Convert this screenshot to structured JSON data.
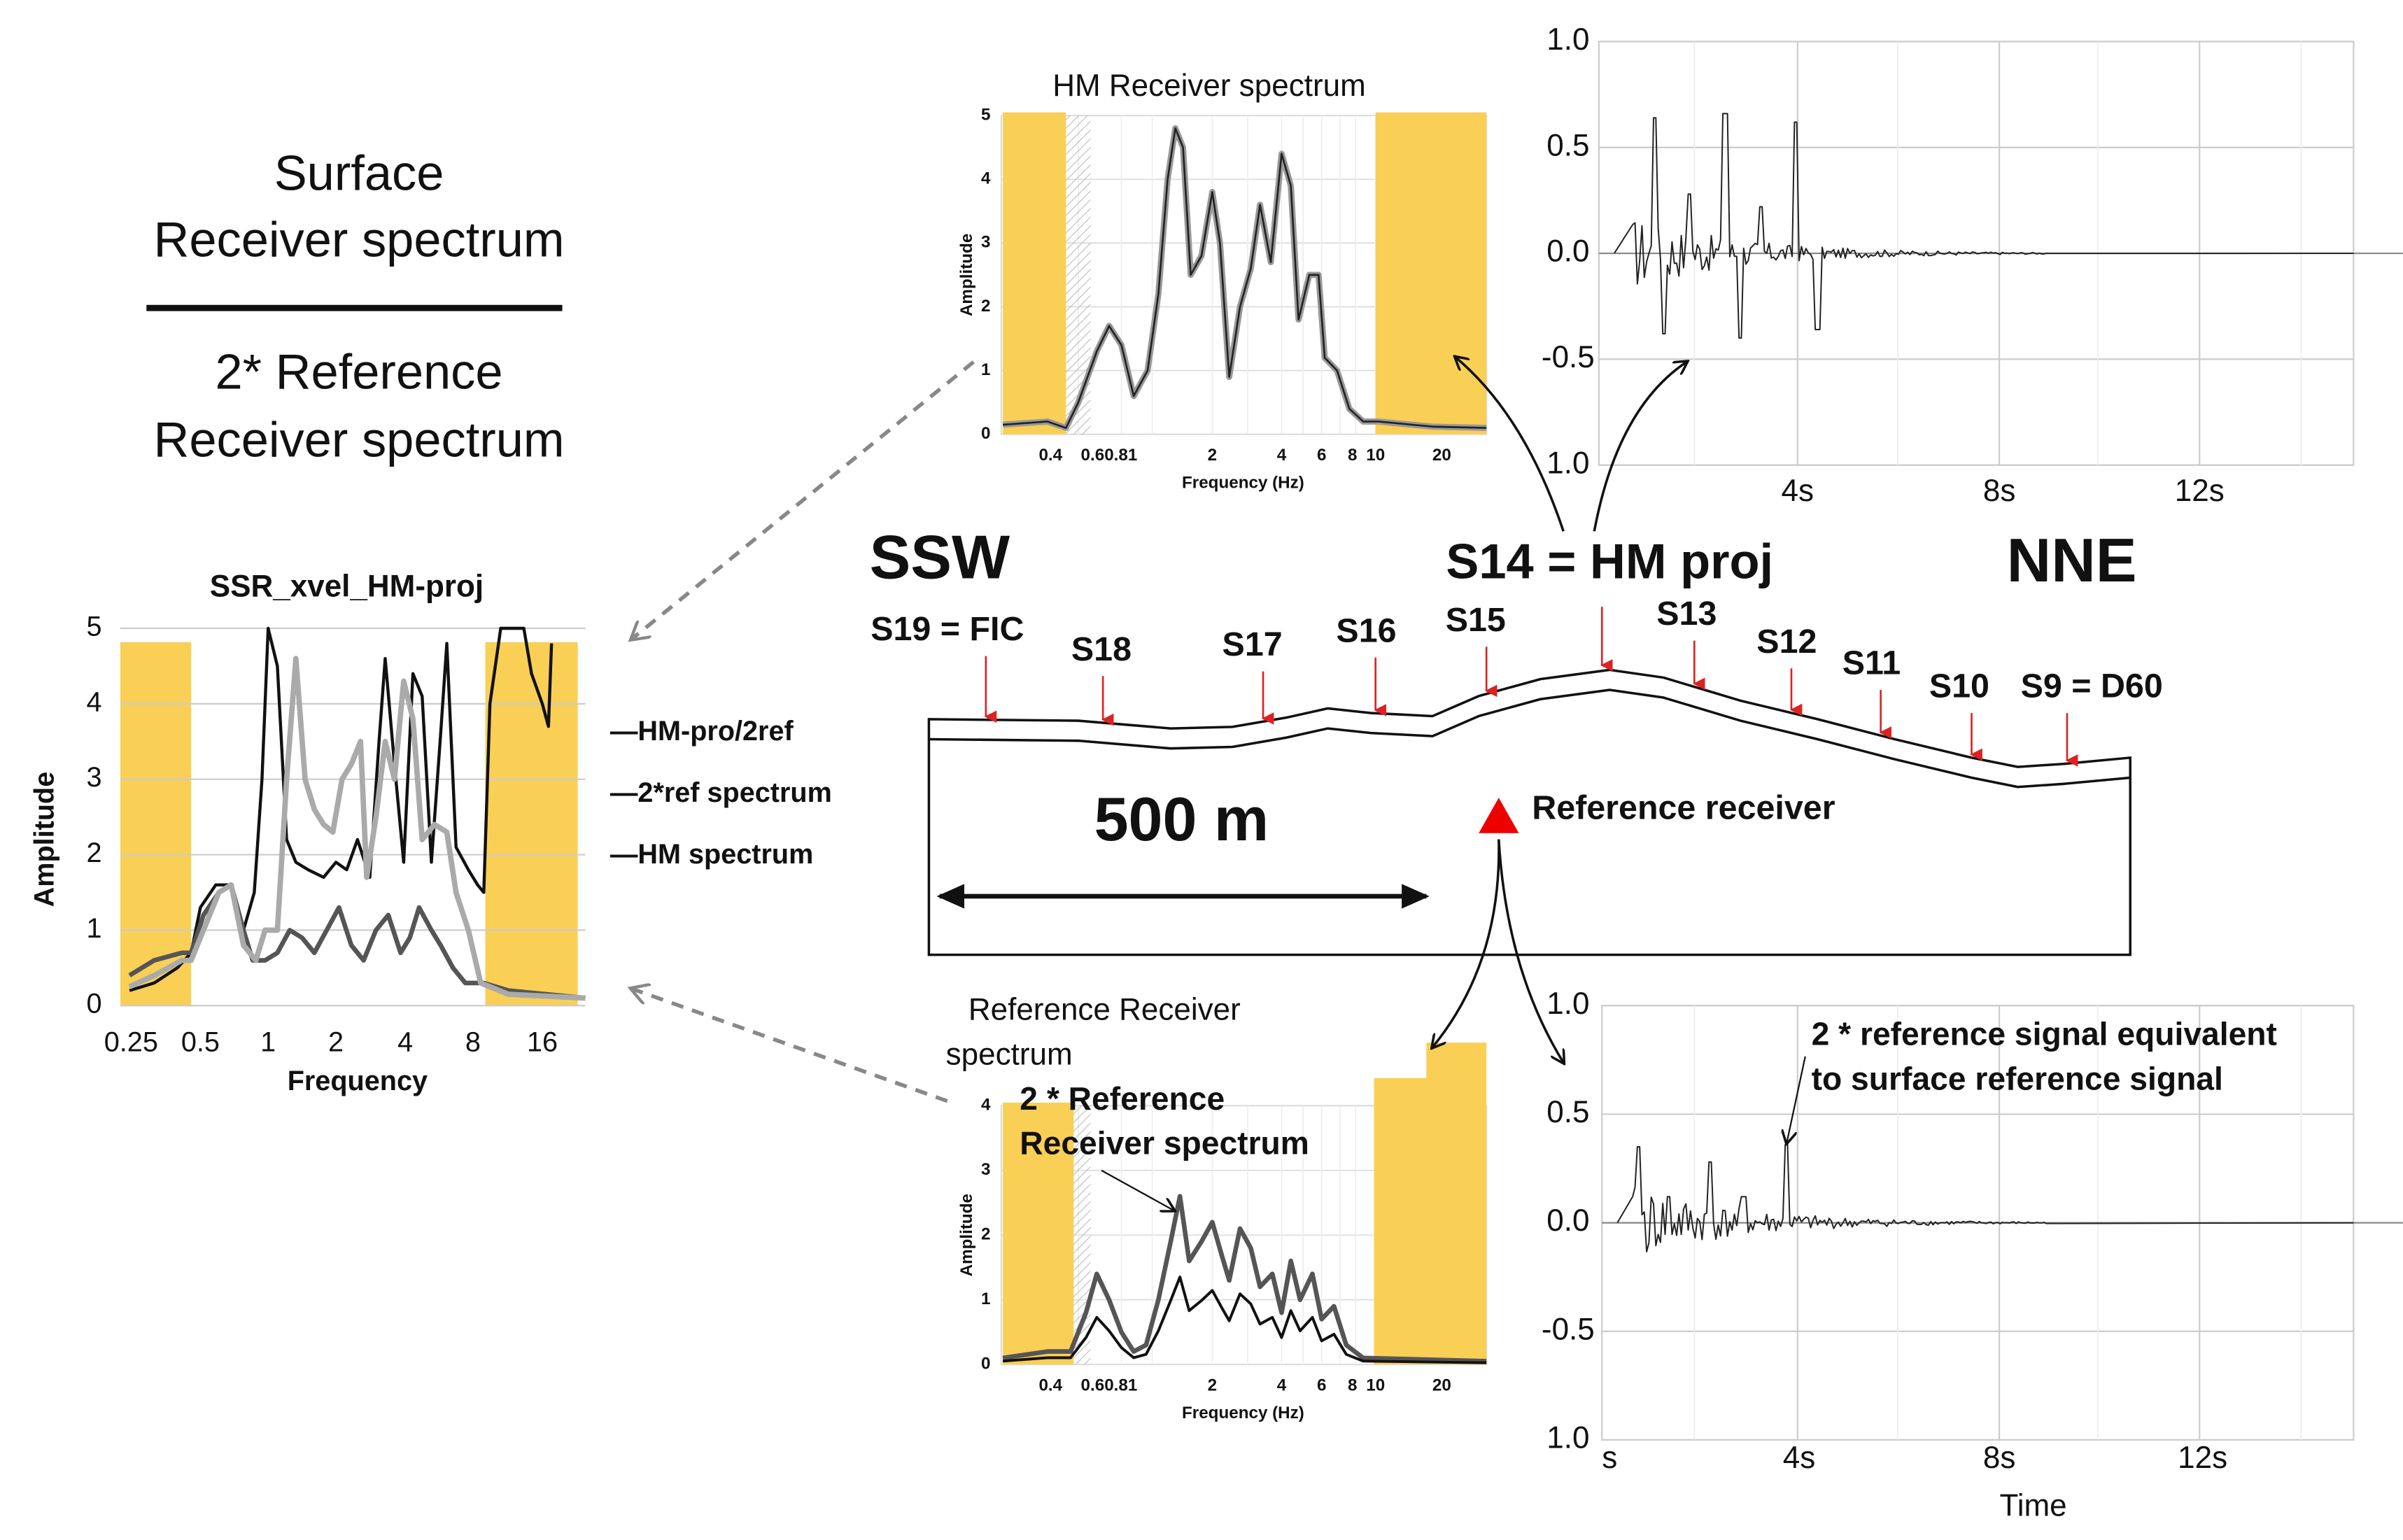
{
  "formula": {
    "numerator": [
      "Surface",
      "Receiver spectrum"
    ],
    "denominator": [
      "2* Reference",
      "Receiver spectrum"
    ]
  },
  "ssr_panel": {
    "title": "SSR_xvel_HM-proj",
    "y_label": "Amplitude",
    "x_label": "Frequency",
    "y_ticks": [
      "0",
      "1",
      "2",
      "3",
      "4",
      "5"
    ],
    "x_ticks": [
      "0.25",
      "0.5",
      "1",
      "2",
      "4",
      "8",
      "16"
    ],
    "legend": [
      "—HM-pro/2ref",
      "—2*ref spectrum",
      "—HM spectrum"
    ]
  },
  "hm_panel": {
    "title": "HM Receiver spectrum",
    "y_label": "Amplitude",
    "x_label": "Frequency (Hz)",
    "y_ticks": [
      "0",
      "1",
      "2",
      "3",
      "4",
      "5"
    ],
    "x_ticks": [
      "0.4",
      "0.60.81",
      "2",
      "4",
      "6",
      "8",
      "10",
      "20"
    ]
  },
  "top_signal": {
    "y_ticks": [
      "1.0",
      "0.5",
      "0.0",
      "-0.5",
      "1.0"
    ],
    "x_ticks": [
      "4s",
      "8s",
      "12s"
    ]
  },
  "profile": {
    "left": "SSW",
    "center": "S14 = HM proj",
    "right": "NNE",
    "stations": [
      "S19 = FIC",
      "S18",
      "S17",
      "S16",
      "S15",
      "S13",
      "S12",
      "S11",
      "S10",
      "S9 = D60"
    ],
    "scale": "500 m",
    "reference": "Reference receiver"
  },
  "ref_panel": {
    "title": [
      "Reference Receiver",
      "spectrum"
    ],
    "note": [
      "2 * Reference",
      "Receiver spectrum"
    ],
    "y_label": "Amplitude",
    "x_label": "Frequency (Hz)",
    "y_ticks": [
      "0",
      "1",
      "2",
      "3",
      "4"
    ],
    "x_ticks": [
      "0.4",
      "0.60.81",
      "2",
      "4",
      "6",
      "8",
      "10",
      "20"
    ]
  },
  "bottom_signal": {
    "y_ticks": [
      "1.0",
      "0.5",
      "0.0",
      "-0.5",
      "1.0"
    ],
    "x_ticks": [
      "s",
      "4s",
      "8s",
      "12s"
    ],
    "x_label": "Time",
    "note": [
      "2 * reference signal equivalent",
      "to surface reference signal"
    ]
  }
}
